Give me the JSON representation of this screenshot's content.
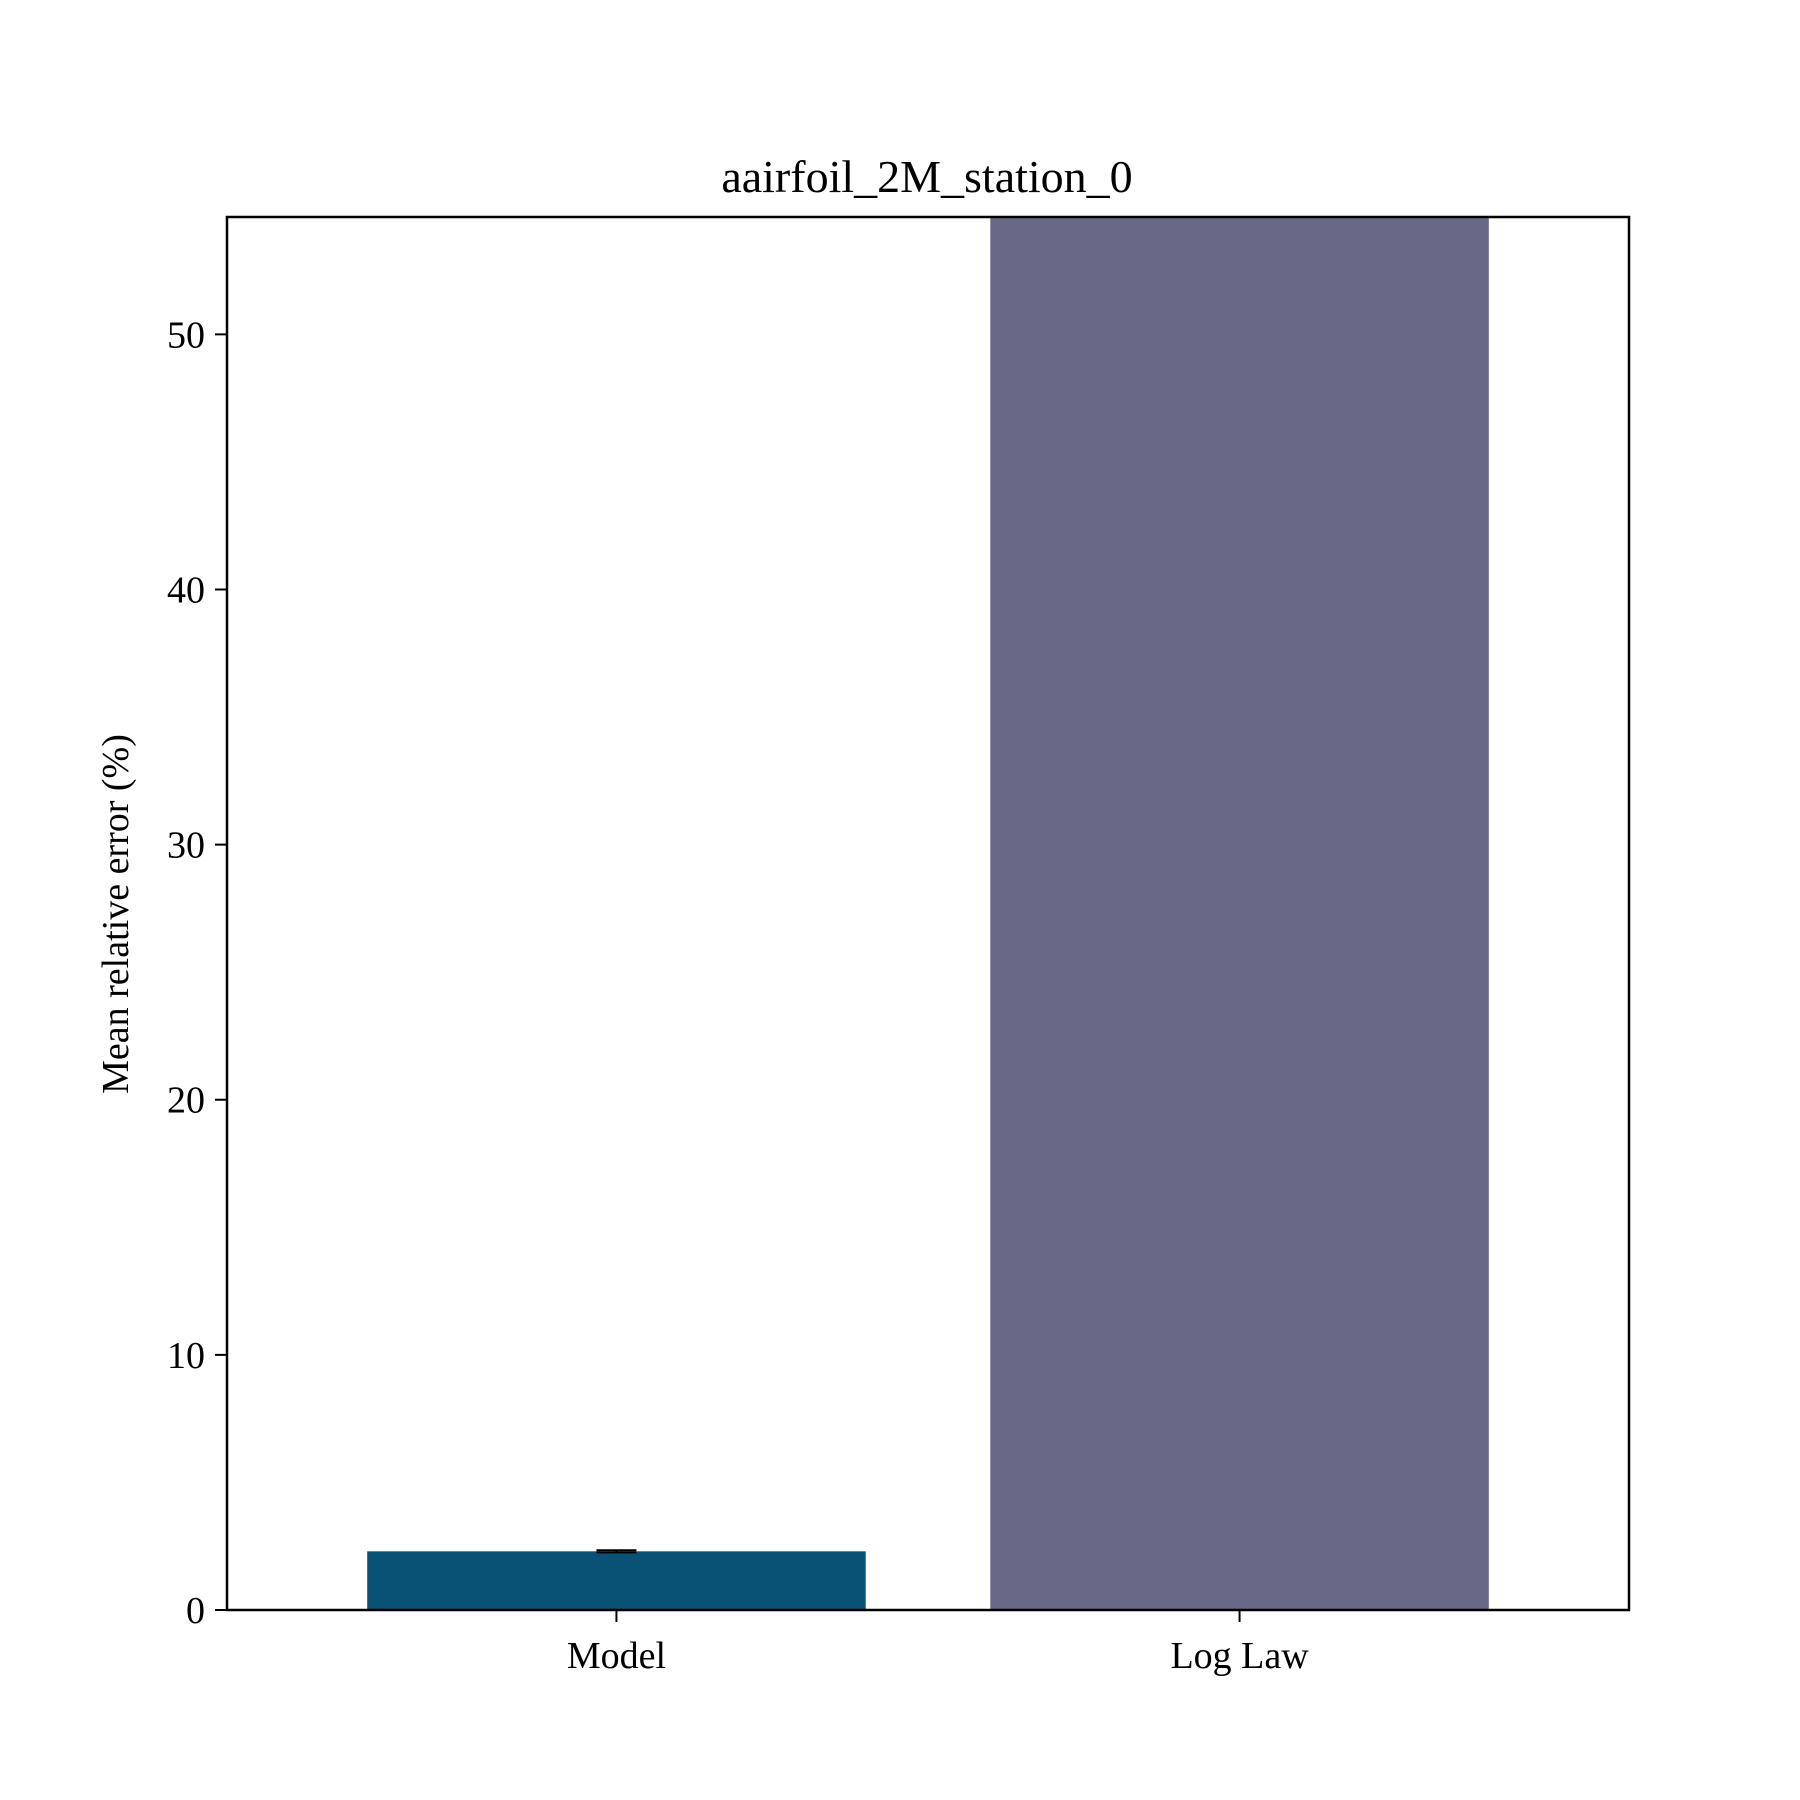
{
  "chart_data": {
    "type": "bar",
    "title": "aairfoil_2M_station_0",
    "xlabel": "",
    "ylabel": "Mean relative error (%)",
    "categories": [
      "Model",
      "Log Law"
    ],
    "values": [
      2.3,
      54.6
    ],
    "error": [
      0.04,
      0.0
    ],
    "colors": [
      "#0a5176",
      "#686887"
    ],
    "ylim": [
      0,
      54.6
    ],
    "yticks": [
      0,
      10,
      20,
      30,
      40,
      50
    ],
    "grid": false,
    "legend": "none"
  }
}
